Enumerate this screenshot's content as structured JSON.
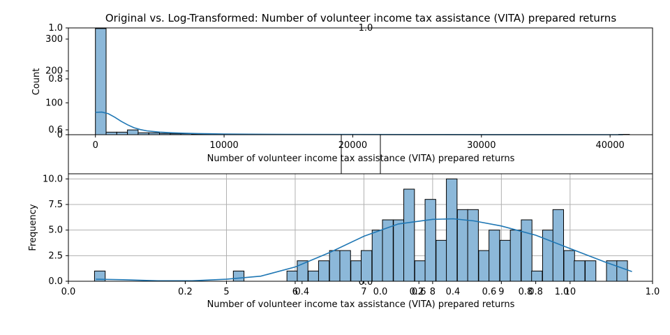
{
  "figure": {
    "title": "Original vs. Log-Transformed: Number of volunteer income tax assistance (VITA) prepared returns"
  },
  "colors": {
    "bar_fill": "#8cb8d9",
    "bar_edge": "#000000",
    "kde_line": "#1f77b4",
    "grid": "#b0b0b0"
  },
  "chart_data": [
    {
      "type": "bar",
      "subtype": "histogram_with_kde",
      "title": "",
      "xlabel": "Number of volunteer income tax assistance (VITA) prepared returns",
      "ylabel": "Count",
      "xlim": [
        -2100,
        43300
      ],
      "ylim": [
        0,
        335
      ],
      "xticks": [
        0,
        10000,
        20000,
        30000,
        40000
      ],
      "yticks": [
        0,
        100,
        200,
        300
      ],
      "grid": false,
      "bin_width": 830,
      "bins": [
        {
          "x0": 0,
          "count": 333
        },
        {
          "x0": 830,
          "count": 8
        },
        {
          "x0": 1660,
          "count": 8
        },
        {
          "x0": 2490,
          "count": 15
        },
        {
          "x0": 3320,
          "count": 6
        },
        {
          "x0": 4150,
          "count": 6
        },
        {
          "x0": 4980,
          "count": 4
        },
        {
          "x0": 5810,
          "count": 3
        },
        {
          "x0": 6640,
          "count": 3
        },
        {
          "x0": 7470,
          "count": 2
        },
        {
          "x0": 8300,
          "count": 1
        },
        {
          "x0": 9130,
          "count": 1
        },
        {
          "x0": 9960,
          "count": 1
        },
        {
          "x0": 10790,
          "count": 2
        },
        {
          "x0": 11620,
          "count": 1
        },
        {
          "x0": 12450,
          "count": 1
        },
        {
          "x0": 13280,
          "count": 1
        },
        {
          "x0": 14940,
          "count": 1
        },
        {
          "x0": 17430,
          "count": 1
        },
        {
          "x0": 19920,
          "count": 1
        },
        {
          "x0": 23240,
          "count": 1
        },
        {
          "x0": 40670,
          "count": 1
        }
      ],
      "kde": {
        "x": [
          0,
          500,
          1000,
          1500,
          2000,
          2500,
          3000,
          3500,
          4000,
          5000,
          6000,
          7000,
          8000,
          9000,
          10000,
          12000,
          15000,
          20000,
          25000,
          30000,
          35000,
          41000
        ],
        "y": [
          70,
          71,
          66,
          55,
          42,
          31,
          22,
          16,
          12,
          8,
          6,
          4.5,
          3.5,
          2.8,
          2.2,
          1.5,
          1.0,
          0.6,
          0.4,
          0.3,
          0.2,
          0.1
        ]
      }
    },
    {
      "type": "bar",
      "subtype": "histogram_with_kde",
      "title": "",
      "xlabel": "Number of volunteer income tax assistance (VITA) prepared returns",
      "ylabel": "Frequency",
      "xlim": [
        2.7,
        11.2
      ],
      "ylim": [
        0,
        10.5
      ],
      "xticks": [
        5,
        6,
        7,
        8,
        9,
        10
      ],
      "yticks": [
        0.0,
        2.5,
        5.0,
        7.5,
        10.0
      ],
      "grid": true,
      "bin_width": 0.1553,
      "bins": [
        {
          "x0": 3.08,
          "count": 1
        },
        {
          "x0": 3.24,
          "count": 0
        },
        {
          "x0": 3.39,
          "count": 0
        },
        {
          "x0": 3.55,
          "count": 0
        },
        {
          "x0": 3.7,
          "count": 0
        },
        {
          "x0": 3.86,
          "count": 0
        },
        {
          "x0": 4.01,
          "count": 0
        },
        {
          "x0": 4.17,
          "count": 0
        },
        {
          "x0": 4.32,
          "count": 0
        },
        {
          "x0": 4.48,
          "count": 0
        },
        {
          "x0": 4.63,
          "count": 0
        },
        {
          "x0": 4.79,
          "count": 0
        },
        {
          "x0": 4.94,
          "count": 0
        },
        {
          "x0": 5.1,
          "count": 1
        },
        {
          "x0": 5.25,
          "count": 0
        },
        {
          "x0": 5.41,
          "count": 0
        },
        {
          "x0": 5.56,
          "count": 0
        },
        {
          "x0": 5.72,
          "count": 0
        },
        {
          "x0": 5.88,
          "count": 1
        },
        {
          "x0": 6.03,
          "count": 2
        },
        {
          "x0": 6.19,
          "count": 1
        },
        {
          "x0": 6.34,
          "count": 2
        },
        {
          "x0": 6.5,
          "count": 3
        },
        {
          "x0": 6.65,
          "count": 3
        },
        {
          "x0": 6.81,
          "count": 2
        },
        {
          "x0": 6.96,
          "count": 3
        },
        {
          "x0": 7.12,
          "count": 5
        },
        {
          "x0": 7.27,
          "count": 6
        },
        {
          "x0": 7.43,
          "count": 6
        },
        {
          "x0": 7.58,
          "count": 9
        },
        {
          "x0": 7.74,
          "count": 2
        },
        {
          "x0": 7.89,
          "count": 8
        },
        {
          "x0": 8.05,
          "count": 4
        },
        {
          "x0": 8.2,
          "count": 10
        },
        {
          "x0": 8.36,
          "count": 7
        },
        {
          "x0": 8.51,
          "count": 7
        },
        {
          "x0": 8.67,
          "count": 3
        },
        {
          "x0": 8.82,
          "count": 5
        },
        {
          "x0": 8.98,
          "count": 4
        },
        {
          "x0": 9.13,
          "count": 5
        },
        {
          "x0": 9.29,
          "count": 6
        },
        {
          "x0": 9.44,
          "count": 1
        },
        {
          "x0": 9.6,
          "count": 5
        },
        {
          "x0": 9.75,
          "count": 7
        },
        {
          "x0": 9.91,
          "count": 3
        },
        {
          "x0": 10.06,
          "count": 2
        },
        {
          "x0": 10.22,
          "count": 2
        },
        {
          "x0": 10.37,
          "count": 0
        },
        {
          "x0": 10.53,
          "count": 2
        },
        {
          "x0": 10.68,
          "count": 2
        }
      ],
      "kde": {
        "x": [
          3.1,
          3.5,
          4.0,
          4.5,
          5.0,
          5.5,
          6.0,
          6.5,
          7.0,
          7.5,
          8.0,
          8.3,
          8.6,
          9.0,
          9.5,
          10.0,
          10.5,
          10.9
        ],
        "y": [
          0.2,
          0.15,
          0.05,
          0.05,
          0.2,
          0.5,
          1.4,
          2.8,
          4.4,
          5.6,
          6.05,
          6.1,
          5.9,
          5.4,
          4.5,
          3.2,
          1.9,
          0.95
        ]
      }
    },
    {
      "type": "overlay_axes",
      "xlim": [
        0.0,
        1.0
      ],
      "ylim": [
        0.0,
        1.0
      ],
      "xticks": [
        "0.0",
        "0.2",
        "0.4",
        "0.6",
        "0.8",
        "1.0"
      ],
      "yticks": [
        "0.6",
        "0.8",
        "1.0"
      ],
      "grid": false
    },
    {
      "type": "overlay_axes",
      "xlim": [
        0.0,
        1.0
      ],
      "ylim": [
        0.0,
        1.0
      ],
      "xticks": [
        "0.0",
        "0.2",
        "0.4",
        "0.6",
        "0.8",
        "1.0"
      ],
      "yticks": [
        "0.0",
        "1.0"
      ],
      "grid": false
    }
  ]
}
